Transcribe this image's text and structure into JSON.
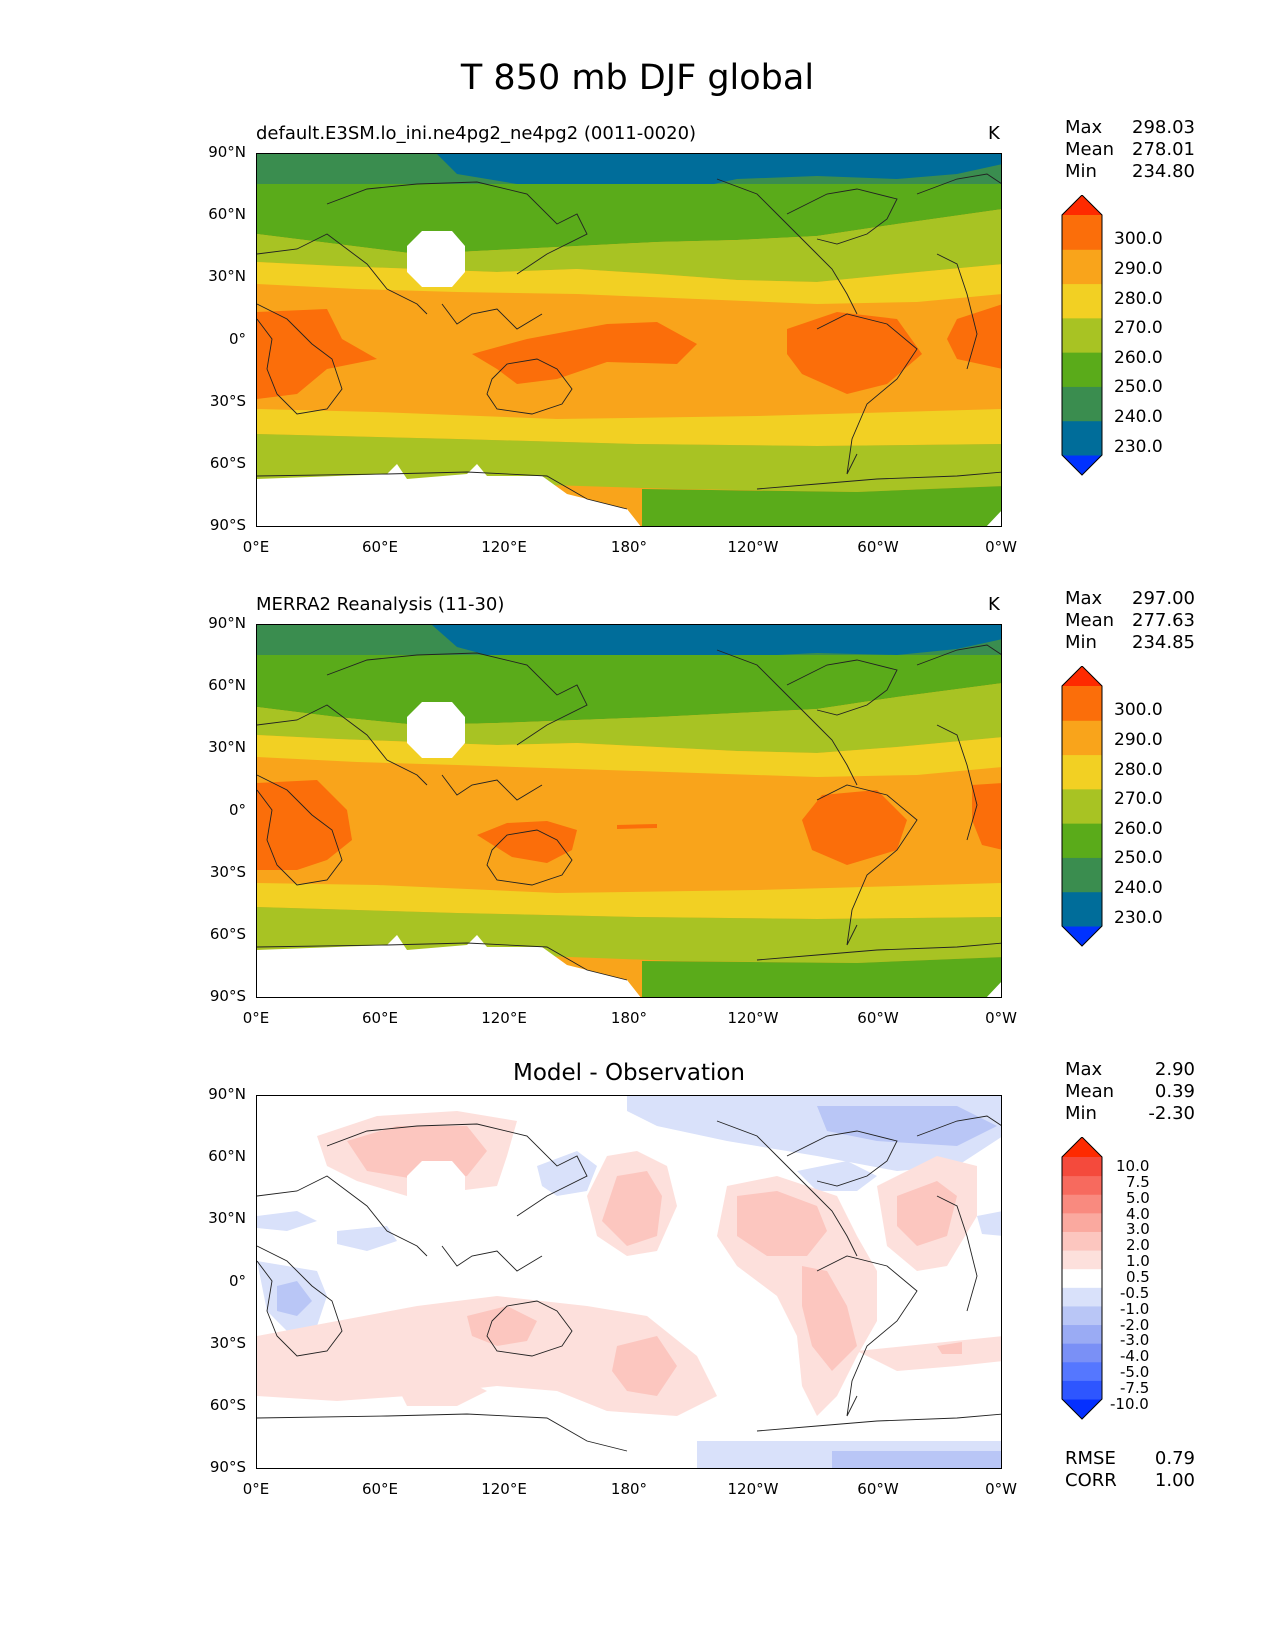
{
  "figure": {
    "title": "T 850 mb DJF global"
  },
  "x_ticks": [
    "0°E",
    "60°E",
    "120°E",
    "180°",
    "120°W",
    "60°W",
    "0°W"
  ],
  "y_ticks": [
    "90°N",
    "60°N",
    "30°N",
    "0°",
    "30°S",
    "60°S",
    "90°S"
  ],
  "panels": [
    {
      "label": "default.E3SM.lo_ini.ne4pg2_ne4pg2 (0011-0020)",
      "units": "K",
      "stats": {
        "max_label": "Max",
        "max": "298.03",
        "mean_label": "Mean",
        "mean": "278.01",
        "min_label": "Min",
        "min": "234.80"
      },
      "colorbar": {
        "levels": [
          "300.0",
          "290.0",
          "280.0",
          "270.0",
          "260.0",
          "250.0",
          "240.0",
          "230.0"
        ]
      }
    },
    {
      "label": "MERRA2 Reanalysis (11-30)",
      "units": "K",
      "stats": {
        "max_label": "Max",
        "max": "297.00",
        "mean_label": "Mean",
        "mean": "277.63",
        "min_label": "Min",
        "min": "234.85"
      },
      "colorbar": {
        "levels": [
          "300.0",
          "290.0",
          "280.0",
          "270.0",
          "260.0",
          "250.0",
          "240.0",
          "230.0"
        ]
      }
    },
    {
      "title": "Model - Observation",
      "stats": {
        "max_label": "Max",
        "max": "2.90",
        "mean_label": "Mean",
        "mean": "0.39",
        "min_label": "Min",
        "min": "-2.30"
      },
      "colorbar": {
        "levels": [
          "10.0",
          "7.5",
          "5.0",
          "4.0",
          "3.0",
          "2.0",
          "1.0",
          "0.5",
          "-0.5",
          "-1.0",
          "-2.0",
          "-3.0",
          "-4.0",
          "-5.0",
          "-7.5",
          "-10.0"
        ]
      },
      "metrics": {
        "rmse_label": "RMSE",
        "rmse": "0.79",
        "corr_label": "CORR",
        "corr": "1.00"
      }
    }
  ],
  "colors": {
    "field_bands": [
      "#0032ff",
      "#006d9a",
      "#3a8d4f",
      "#5aab1a",
      "#a8c323",
      "#f2d023",
      "#f9a41b",
      "#fb6e0a",
      "#fe2a00"
    ],
    "diff_bands": [
      "#0530ff",
      "#2e56ff",
      "#5577ff",
      "#7a90f6",
      "#9aabf4",
      "#b9c6f6",
      "#d9e1fa",
      "#ffffff",
      "#fde0dc",
      "#fcc6bf",
      "#faa99f",
      "#f98a7f",
      "#f76a5e",
      "#f44a3c",
      "#fe2a00"
    ]
  },
  "chart_data": [
    {
      "type": "heatmap",
      "title": "default.E3SM.lo_ini.ne4pg2_ne4pg2 (0011-0020)",
      "units": "K",
      "x_range": [
        "0°E",
        "0°W"
      ],
      "y_range": [
        "90°S",
        "90°N"
      ],
      "levels": [
        230,
        240,
        250,
        260,
        270,
        280,
        290,
        300
      ],
      "stats": {
        "max": 298.03,
        "mean": 278.01,
        "min": 234.8
      }
    },
    {
      "type": "heatmap",
      "title": "MERRA2 Reanalysis (11-30)",
      "units": "K",
      "x_range": [
        "0°E",
        "0°W"
      ],
      "y_range": [
        "90°S",
        "90°N"
      ],
      "levels": [
        230,
        240,
        250,
        260,
        270,
        280,
        290,
        300
      ],
      "stats": {
        "max": 297.0,
        "mean": 277.63,
        "min": 234.85
      }
    },
    {
      "type": "heatmap",
      "title": "Model - Observation",
      "x_range": [
        "0°E",
        "0°W"
      ],
      "y_range": [
        "90°S",
        "90°N"
      ],
      "levels": [
        -10,
        -7.5,
        -5,
        -4,
        -3,
        -2,
        -1,
        -0.5,
        0.5,
        1,
        2,
        3,
        4,
        5,
        7.5,
        10
      ],
      "stats": {
        "max": 2.9,
        "mean": 0.39,
        "min": -2.3
      },
      "rmse": 0.79,
      "corr": 1.0
    }
  ]
}
